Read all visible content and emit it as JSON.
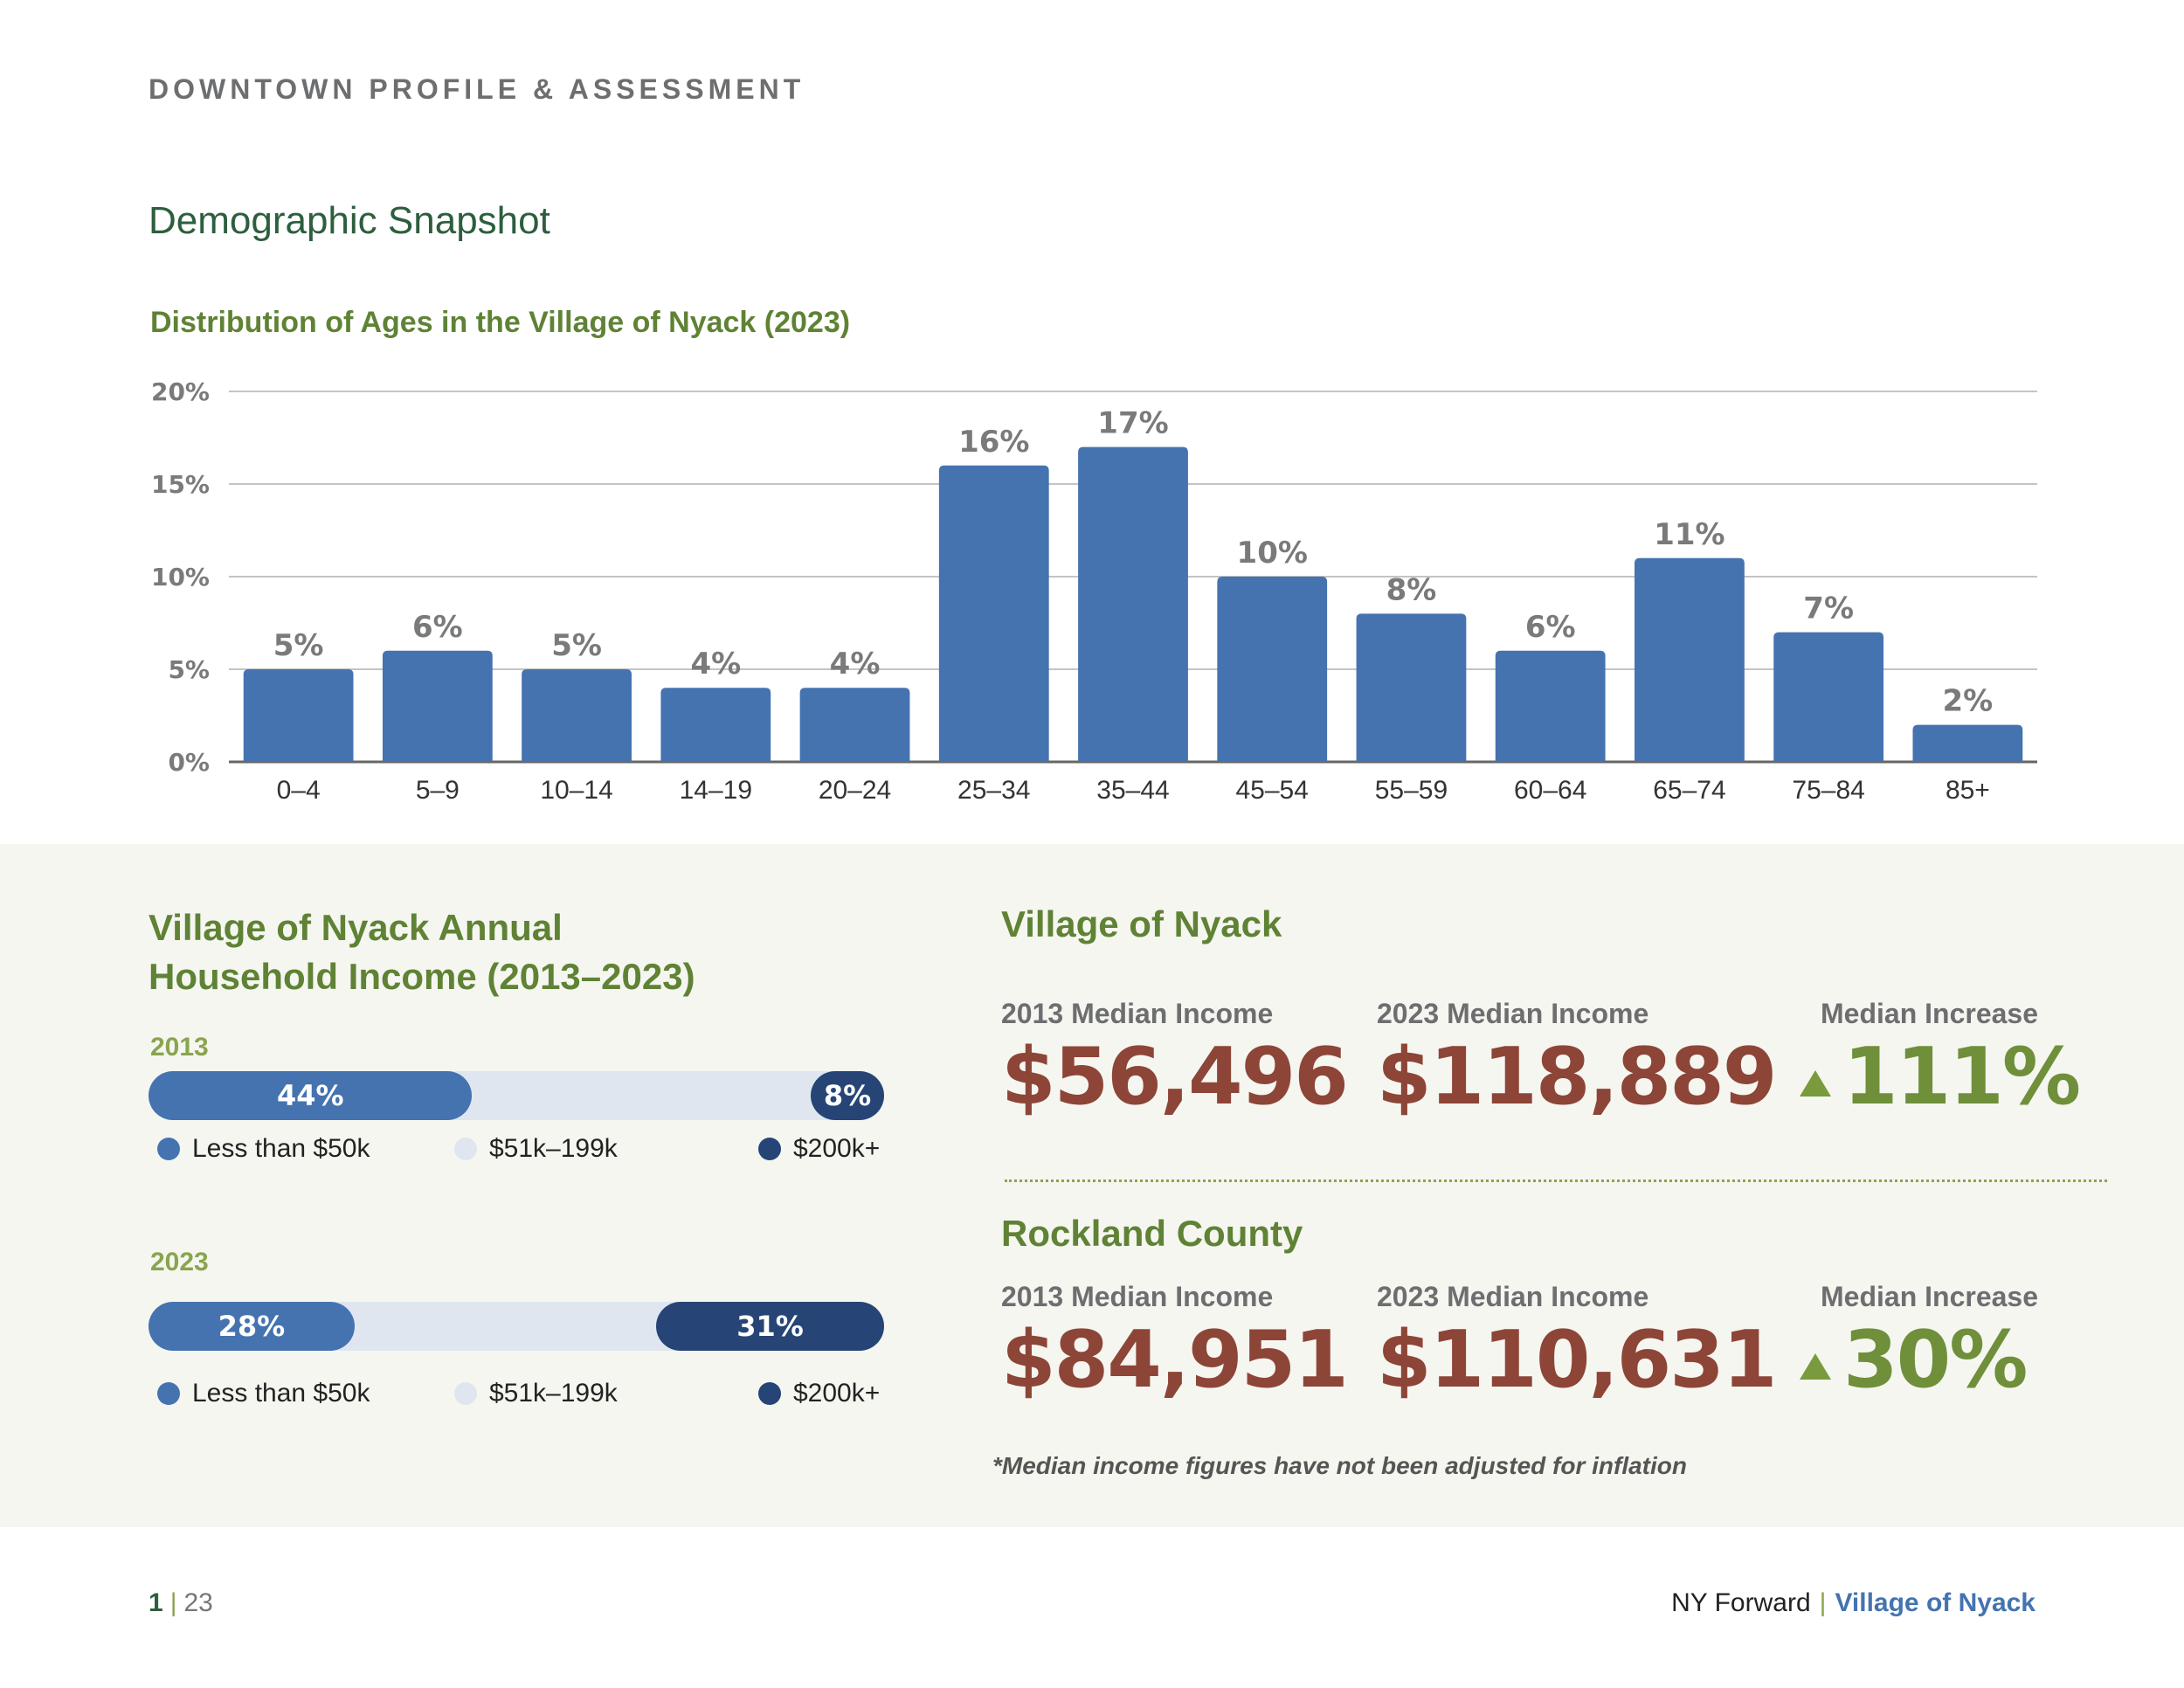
{
  "header": {
    "label": "DOWNTOWN PROFILE & ASSESSMENT",
    "section_title": "Demographic Snapshot"
  },
  "age_chart": {
    "title": "Distribution of Ages in the Village of Nyack (2023)"
  },
  "chart_data": {
    "type": "bar",
    "title": "Distribution of Ages in the Village of Nyack (2023)",
    "categories": [
      "0–4",
      "5–9",
      "10–14",
      "14–19",
      "20–24",
      "25–34",
      "35–44",
      "45–54",
      "55–59",
      "60–64",
      "65–74",
      "75–84",
      "85+"
    ],
    "values": [
      5,
      6,
      5,
      4,
      4,
      16,
      17,
      10,
      8,
      6,
      11,
      7,
      2
    ],
    "data_labels": [
      "5%",
      "6%",
      "5%",
      "4%",
      "4%",
      "16%",
      "17%",
      "10%",
      "8%",
      "6%",
      "11%",
      "7%",
      "2%"
    ],
    "yticks": [
      "0%",
      "5%",
      "10%",
      "15%",
      "20%"
    ],
    "ylim": [
      0,
      20
    ],
    "grid": true,
    "bar_color": "#4573b0"
  },
  "income": {
    "title_line1": "Village of Nyack Annual",
    "title_line2": "Household Income (2013–2023)",
    "years": [
      {
        "year": "2013",
        "low_label": "44%",
        "low_value": 44,
        "high_label": "8%",
        "high_value": 8
      },
      {
        "year": "2023",
        "low_label": "28%",
        "low_value": 28,
        "high_label": "31%",
        "high_value": 31
      }
    ],
    "legend": {
      "low": "Less than $50k",
      "mid": "$51k–199k",
      "high": "$200k+"
    },
    "colors": {
      "low": "#4573b0",
      "mid": "#dfe6f0",
      "high": "#264576"
    }
  },
  "medians": {
    "nyack": {
      "title": "Village of Nyack",
      "label_2013": "2013 Median Income",
      "value_2013": "$56,496",
      "label_2023": "2023 Median Income",
      "value_2023": "$118,889",
      "label_increase": "Median Increase",
      "value_increase": "111%"
    },
    "rockland": {
      "title": "Rockland County",
      "label_2013": "2013 Median Income",
      "value_2013": "$84,951",
      "label_2023": "2023 Median Income",
      "value_2023": "$110,631",
      "label_increase": "Median Increase",
      "value_increase": "30%"
    },
    "footnote": "*Median income figures have not been adjusted for inflation"
  },
  "footer": {
    "page_current": "1",
    "page_separator": "|",
    "page_total": "23",
    "program": "NY Forward",
    "separator": "|",
    "village": "Village of Nyack"
  }
}
